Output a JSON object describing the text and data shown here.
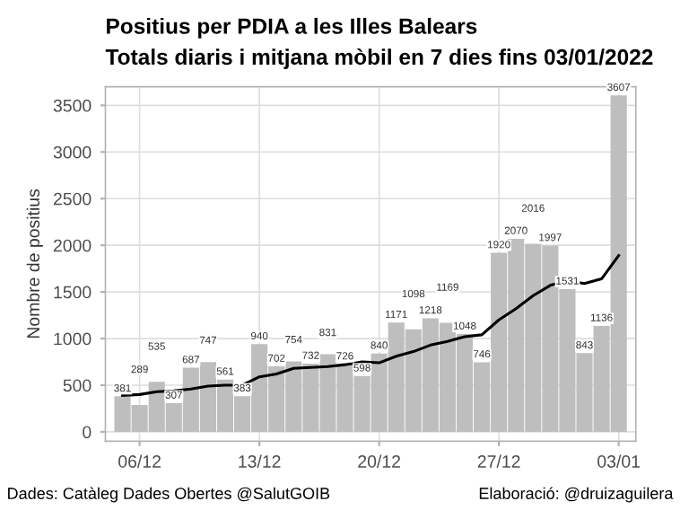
{
  "chart_data": {
    "type": "bar",
    "title": "Positius per PDIA a les Illes Balears",
    "subtitle": "Totals diaris i mitjana mòbil en 7 dies fins 03/01/2022",
    "ylabel": "Nombre de positius",
    "x": [
      "2021-12-05",
      "2021-12-06",
      "2021-12-07",
      "2021-12-08",
      "2021-12-09",
      "2021-12-10",
      "2021-12-11",
      "2021-12-12",
      "2021-12-13",
      "2021-12-14",
      "2021-12-15",
      "2021-12-16",
      "2021-12-17",
      "2021-12-18",
      "2021-12-19",
      "2021-12-20",
      "2021-12-21",
      "2021-12-22",
      "2021-12-23",
      "2021-12-24",
      "2021-12-25",
      "2021-12-26",
      "2021-12-27",
      "2021-12-28",
      "2021-12-29",
      "2021-12-30",
      "2021-12-31",
      "2022-01-01",
      "2022-01-02",
      "2022-01-03"
    ],
    "series": [
      {
        "color": "#bebebe",
        "data_labels": true,
        "values": [
          381,
          289,
          535,
          307,
          687,
          747,
          561,
          383,
          940,
          702,
          754,
          732,
          831,
          726,
          598,
          840,
          1171,
          1098,
          1218,
          1169,
          1048,
          746,
          1920,
          2070,
          2016,
          1997,
          1531,
          843,
          1136,
          3607
        ]
      },
      {
        "type": "line",
        "color": "#000000",
        "values": [
          390,
          400,
          430,
          440,
          460,
          490,
          500,
          500,
          590,
          620,
          680,
          690,
          700,
          720,
          750,
          740,
          810,
          860,
          930,
          970,
          1020,
          1040,
          1200,
          1320,
          1460,
          1570,
          1620,
          1590,
          1640,
          1890
        ]
      }
    ],
    "xlim": [
      "2021-12-04",
      "2022-01-04"
    ],
    "xticks": [
      {
        "value": "2021-12-06",
        "label": "06/12"
      },
      {
        "value": "2021-12-13",
        "label": "13/12"
      },
      {
        "value": "2021-12-20",
        "label": "20/12"
      },
      {
        "value": "2021-12-27",
        "label": "27/12"
      },
      {
        "value": "2022-01-03",
        "label": "03/01"
      }
    ],
    "ylim": [
      -100,
      3700
    ],
    "yticks": [
      0,
      500,
      1000,
      1500,
      2000,
      2500,
      3000,
      3500
    ],
    "grid": true,
    "legend": false,
    "annotations": [
      "Dades: Catàleg Dades Obertes @SalutGOIB",
      "Elaboració: @druizaguilera"
    ]
  }
}
